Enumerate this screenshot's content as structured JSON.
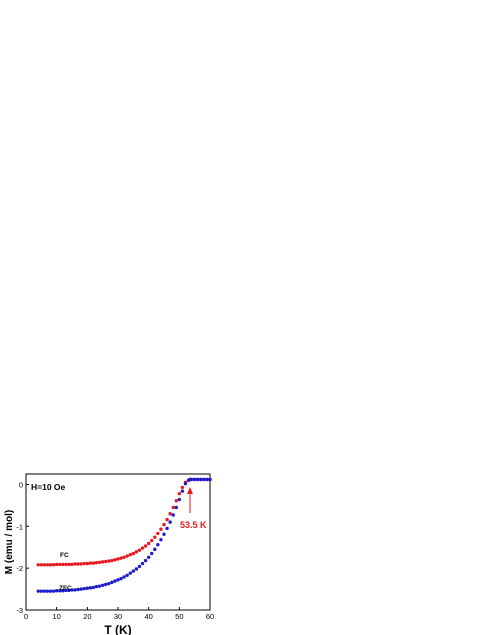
{
  "chart_data": {
    "type": "scatter",
    "title": "",
    "xlabel": "T (K)",
    "ylabel": "M (emu / mol)",
    "xlim": [
      0,
      60
    ],
    "ylim": [
      -3,
      0.25
    ],
    "xticks": [
      0,
      10,
      20,
      30,
      40,
      50,
      60
    ],
    "yticks": [
      0,
      -1,
      -2,
      -3
    ],
    "grid": false,
    "legend": "none",
    "annotations": {
      "field": "H=10 Oe",
      "transition": "53.5 K",
      "fc_label": "FC",
      "zfc_label": "ZFC"
    },
    "colors": {
      "fc": "#e8191e",
      "zfc": "#1c1ccc",
      "arrow": "#e8191e",
      "axis": "#000000"
    },
    "series": [
      {
        "label": "FC",
        "x": [
          4,
          5,
          6,
          7,
          8,
          9,
          10,
          11,
          12,
          13,
          14,
          15,
          16,
          17,
          18,
          19,
          20,
          21,
          22,
          23,
          24,
          25,
          26,
          27,
          28,
          29,
          30,
          31,
          32,
          33,
          34,
          35,
          36,
          37,
          38,
          39,
          40,
          41,
          42,
          43,
          44,
          45,
          46,
          47,
          48,
          49,
          50,
          51,
          52,
          53,
          53.5,
          54,
          55,
          56,
          57,
          58,
          59,
          60
        ],
        "y": [
          -1.92,
          -1.92,
          -1.92,
          -1.92,
          -1.92,
          -1.92,
          -1.91,
          -1.91,
          -1.91,
          -1.91,
          -1.91,
          -1.91,
          -1.9,
          -1.9,
          -1.9,
          -1.89,
          -1.89,
          -1.88,
          -1.88,
          -1.87,
          -1.86,
          -1.85,
          -1.84,
          -1.83,
          -1.82,
          -1.8,
          -1.78,
          -1.76,
          -1.74,
          -1.71,
          -1.68,
          -1.65,
          -1.61,
          -1.57,
          -1.52,
          -1.47,
          -1.41,
          -1.34,
          -1.26,
          -1.17,
          -1.07,
          -0.96,
          -0.84,
          -0.7,
          -0.55,
          -0.39,
          -0.22,
          -0.07,
          0.05,
          0.1,
          0.12,
          0.12,
          0.12,
          0.12,
          0.12,
          0.12,
          0.12,
          0.12
        ]
      },
      {
        "label": "ZFC",
        "x": [
          4,
          5,
          6,
          7,
          8,
          9,
          10,
          11,
          12,
          13,
          14,
          15,
          16,
          17,
          18,
          19,
          20,
          21,
          22,
          23,
          24,
          25,
          26,
          27,
          28,
          29,
          30,
          31,
          32,
          33,
          34,
          35,
          36,
          37,
          38,
          39,
          40,
          41,
          42,
          43,
          44,
          45,
          46,
          47,
          48,
          49,
          50,
          51,
          52,
          53,
          53.5,
          54,
          55,
          56,
          57,
          58,
          59,
          60
        ],
        "y": [
          -2.55,
          -2.55,
          -2.55,
          -2.55,
          -2.55,
          -2.55,
          -2.54,
          -2.54,
          -2.54,
          -2.53,
          -2.53,
          -2.52,
          -2.52,
          -2.51,
          -2.5,
          -2.49,
          -2.48,
          -2.47,
          -2.46,
          -2.44,
          -2.43,
          -2.41,
          -2.39,
          -2.37,
          -2.34,
          -2.31,
          -2.28,
          -2.25,
          -2.21,
          -2.17,
          -2.12,
          -2.07,
          -2.02,
          -1.96,
          -1.89,
          -1.82,
          -1.74,
          -1.65,
          -1.55,
          -1.44,
          -1.32,
          -1.19,
          -1.05,
          -0.9,
          -0.73,
          -0.55,
          -0.36,
          -0.16,
          0.02,
          0.1,
          0.12,
          0.12,
          0.12,
          0.12,
          0.12,
          0.12,
          0.12,
          0.12
        ]
      }
    ]
  }
}
